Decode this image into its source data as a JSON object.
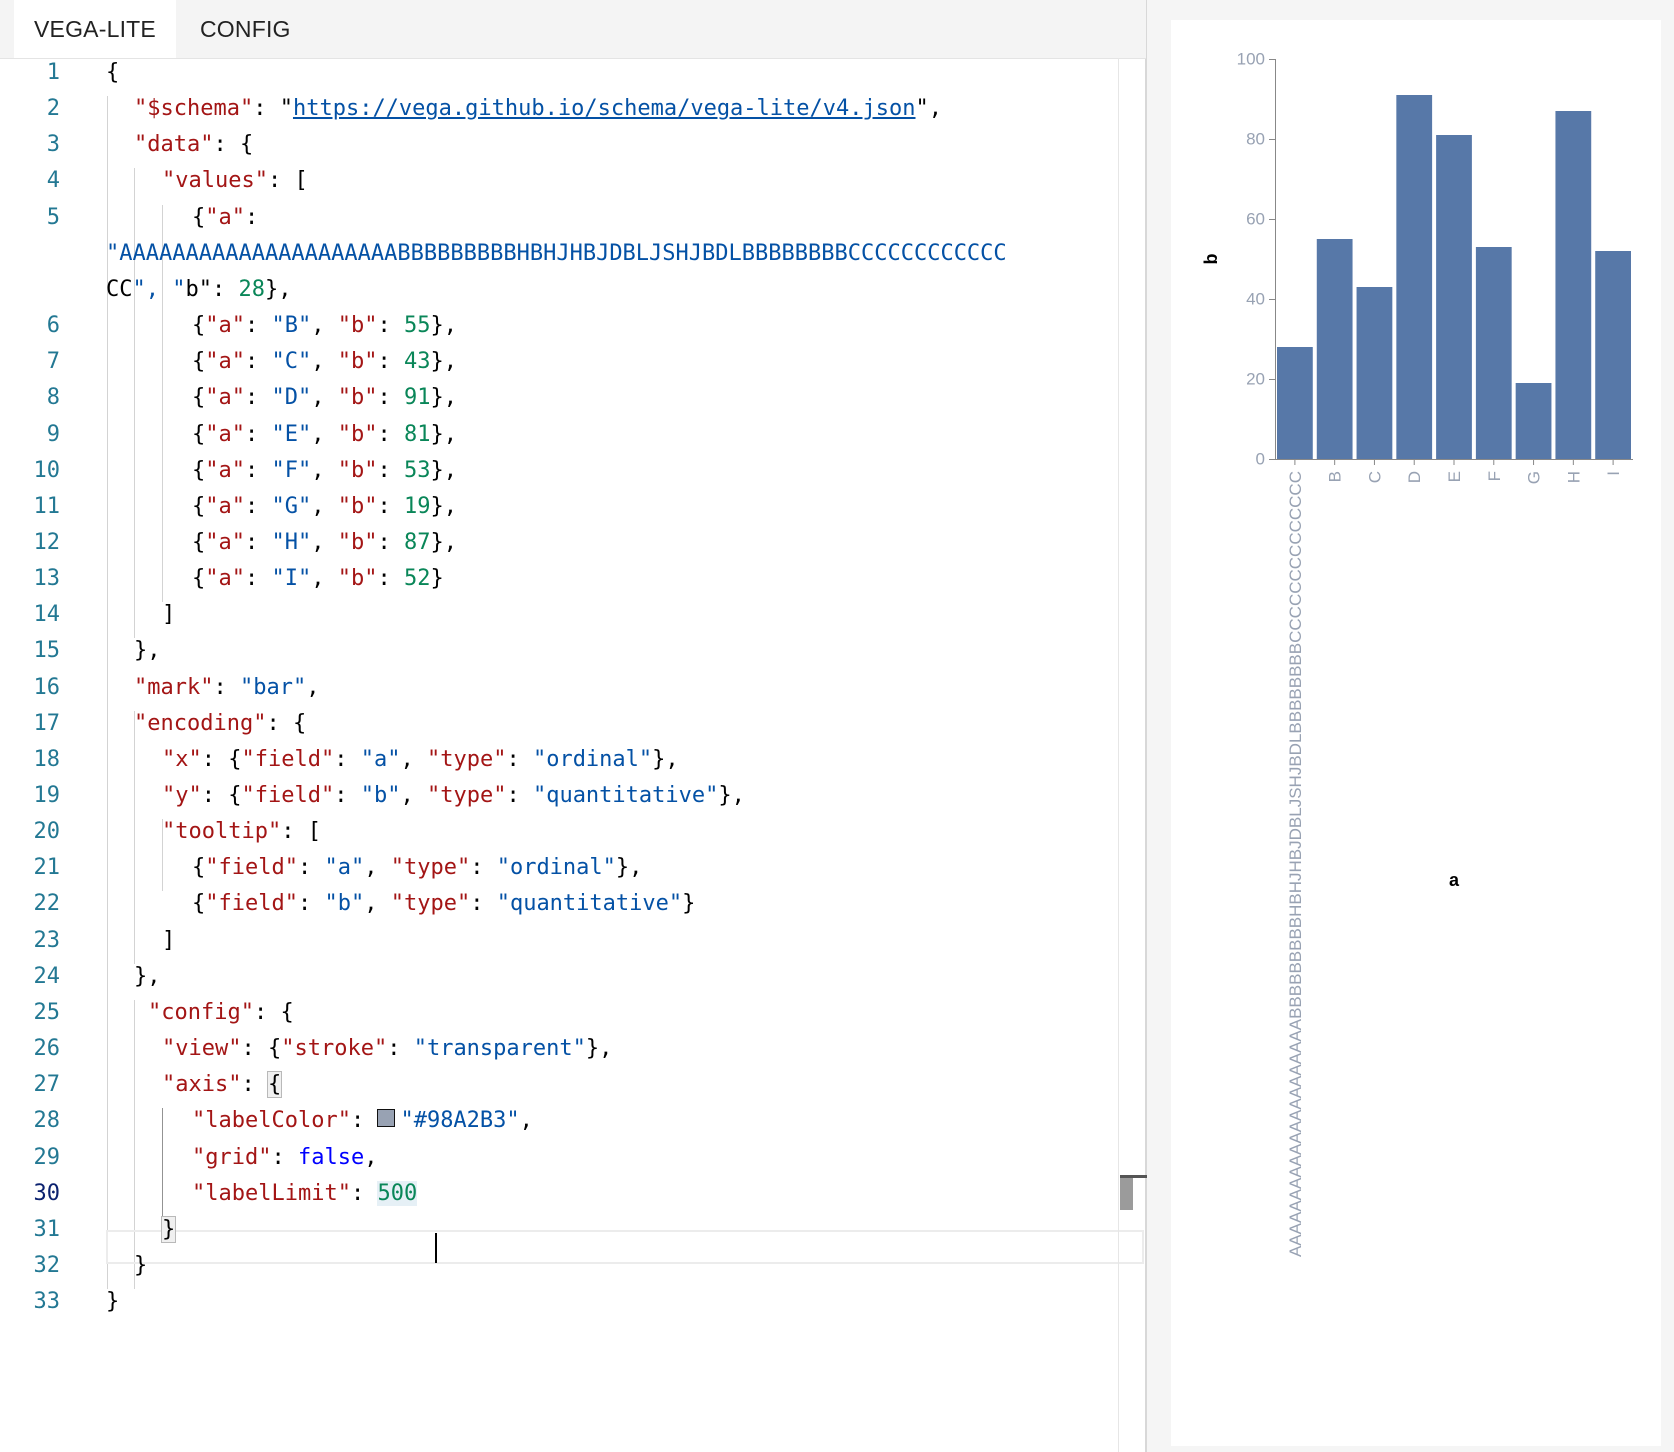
{
  "tabs": [
    {
      "label": "VEGA-LITE"
    },
    {
      "label": "CONFIG"
    }
  ],
  "editor": {
    "line_numbers": [
      "1",
      "2",
      "3",
      "4",
      "5",
      "6",
      "7",
      "8",
      "9",
      "10",
      "11",
      "12",
      "13",
      "14",
      "15",
      "16",
      "17",
      "18",
      "19",
      "20",
      "21",
      "22",
      "23",
      "24",
      "25",
      "26",
      "27",
      "28",
      "29",
      "30",
      "31",
      "32",
      "33"
    ],
    "active_line": "30",
    "code_lines": [
      {
        "id": "l1",
        "text": "{"
      },
      {
        "id": "l2",
        "text": "\"$schema\": \"https://vega.github.io/schema/vega-lite/v4.json\","
      },
      {
        "id": "l3",
        "text": "\"data\": {"
      },
      {
        "id": "l4",
        "text": "\"values\": ["
      },
      {
        "id": "l5a",
        "text": "{\"a\":"
      },
      {
        "id": "l5b",
        "text": "\"AAAAAAAAAAAAAAAAAAAAABBBBBBBBBHBHJHBJDBLJSHJBDLBBBBBBBBCCCCCCCCCCCC"
      },
      {
        "id": "l5c",
        "text": "CC\", \"b\": 28},"
      },
      {
        "id": "l6",
        "text": "{\"a\": \"B\", \"b\": 55},"
      },
      {
        "id": "l7",
        "text": "{\"a\": \"C\", \"b\": 43},"
      },
      {
        "id": "l8",
        "text": "{\"a\": \"D\", \"b\": 91},"
      },
      {
        "id": "l9",
        "text": "{\"a\": \"E\", \"b\": 81},"
      },
      {
        "id": "l10",
        "text": "{\"a\": \"F\", \"b\": 53},"
      },
      {
        "id": "l11",
        "text": "{\"a\": \"G\", \"b\": 19},"
      },
      {
        "id": "l12",
        "text": "{\"a\": \"H\", \"b\": 87},"
      },
      {
        "id": "l13",
        "text": "{\"a\": \"I\", \"b\": 52}"
      },
      {
        "id": "l14",
        "text": "]"
      },
      {
        "id": "l15",
        "text": "},"
      },
      {
        "id": "l16",
        "text": "\"mark\": \"bar\","
      },
      {
        "id": "l17",
        "text": "\"encoding\": {"
      },
      {
        "id": "l18",
        "text": "\"x\": {\"field\": \"a\", \"type\": \"ordinal\"},"
      },
      {
        "id": "l19",
        "text": "\"y\": {\"field\": \"b\", \"type\": \"quantitative\"},"
      },
      {
        "id": "l20",
        "text": "\"tooltip\": ["
      },
      {
        "id": "l21",
        "text": "{\"field\": \"a\", \"type\": \"ordinal\"},"
      },
      {
        "id": "l22",
        "text": "{\"field\": \"b\", \"type\": \"quantitative\"}"
      },
      {
        "id": "l23",
        "text": "]"
      },
      {
        "id": "l24",
        "text": "},"
      },
      {
        "id": "l25",
        "text": "\"config\": {"
      },
      {
        "id": "l26",
        "text": "\"view\": {\"stroke\": \"transparent\"},"
      },
      {
        "id": "l27",
        "text": "\"axis\": {"
      },
      {
        "id": "l28",
        "text": "\"labelColor\": \"#98A2B3\","
      },
      {
        "id": "l29",
        "text": "\"grid\": false,"
      },
      {
        "id": "l30",
        "text": "\"labelLimit\": 500"
      },
      {
        "id": "l31",
        "text": "}"
      },
      {
        "id": "l32",
        "text": "}"
      },
      {
        "id": "l33",
        "text": "}"
      }
    ],
    "swatch_color": "#98A2B3"
  },
  "colors": {
    "key": "#a31515",
    "string": "#0451a5",
    "number": "#098658",
    "keyword": "#0000ff",
    "gutter": "#237893",
    "bar": "#5778a8",
    "axis_label": "#98A2B3"
  },
  "chart_data": {
    "type": "bar",
    "categories": [
      "AAAAAAAAAAAAAAAAAAAAABBBBBBBBBHBHJHBJDBLJSHJBDLBBBBBBBBCCCCCCCCCCCCCC",
      "B",
      "C",
      "D",
      "E",
      "F",
      "G",
      "H",
      "I"
    ],
    "values": [
      28,
      55,
      43,
      91,
      81,
      53,
      19,
      87,
      52
    ],
    "xlabel": "a",
    "ylabel": "b",
    "ylim": [
      0,
      100
    ],
    "yticks": [
      "0",
      "20",
      "40",
      "60",
      "80",
      "100"
    ],
    "grid": false
  }
}
